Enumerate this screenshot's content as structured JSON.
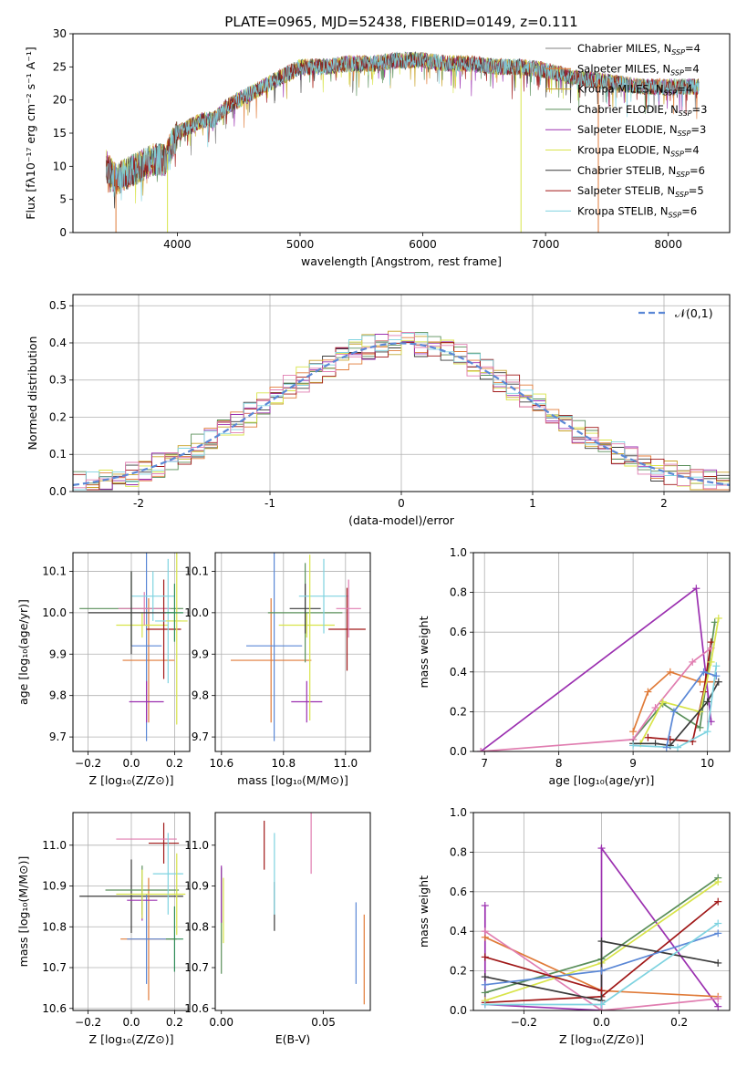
{
  "figure_title": "PLATE=0965, MJD=52438, FIBERID=0149, z=0.111",
  "colors": {
    "series": [
      "#808080",
      "#e07b39",
      "#c9a227",
      "#5a8f5a",
      "#9b30b0",
      "#d8e44a",
      "#3a3a3a",
      "#a01818",
      "#7fd3e0",
      "#5a87d6",
      "#e07db0",
      "#2e8b57"
    ],
    "norm_curve": "#5a87d6"
  },
  "chart_data": [
    {
      "id": "spectrum",
      "type": "line",
      "title": "PLATE=0965, MJD=52438, FIBERID=0149, z=0.111",
      "xlabel": "wavelength [Angstrom, rest frame]",
      "ylabel": "Flux [fλ10⁻¹⁷ erg cm⁻² s⁻¹ A⁻¹]",
      "xlim": [
        3150,
        8500
      ],
      "ylim": [
        0,
        30
      ],
      "xticks": [
        4000,
        5000,
        6000,
        7000,
        8000
      ],
      "yticks": [
        0,
        5,
        10,
        15,
        20,
        25,
        30
      ],
      "legend_position": "top-right",
      "legend": [
        "Chabrier MILES, N_SSP=4",
        "Salpeter MILES, N_SSP=4",
        "Kroupa MILES, N_SSP=4",
        "Chabrier ELODIE, N_SSP=3",
        "Salpeter ELODIE, N_SSP=3",
        "Kroupa ELODIE, N_SSP=4",
        "Chabrier STELIB, N_SSP=6",
        "Salpeter STELIB, N_SSP=5",
        "Kroupa STELIB, N_SSP=6"
      ],
      "legend_colors": [
        "#808080",
        "#e07b39",
        "#c9a227",
        "#5a8f5a",
        "#9b30b0",
        "#d8e44a",
        "#3a3a3a",
        "#a01818",
        "#7fd3e0"
      ],
      "envelope": {
        "x": [
          3420,
          3500,
          3600,
          3700,
          3800,
          3900,
          3950,
          4000,
          4100,
          4200,
          4300,
          4400,
          4500,
          4600,
          4800,
          5000,
          5200,
          5400,
          5600,
          5800,
          6000,
          6200,
          6400,
          6600,
          6800,
          7000,
          7200,
          7400,
          7600,
          7800,
          8000,
          8250
        ],
        "y": [
          10,
          8,
          9,
          10,
          11,
          11,
          13,
          15,
          16,
          17,
          17,
          19,
          20,
          21,
          23,
          25,
          25,
          25.5,
          25.5,
          26,
          26,
          25.5,
          25.5,
          25,
          25,
          24.5,
          23.5,
          23,
          22.5,
          22,
          22,
          22
        ]
      }
    },
    {
      "id": "residuals",
      "type": "histogram",
      "xlabel": "(data-model)/error",
      "ylabel": "Normed distribution",
      "xlim": [
        -2.5,
        2.5
      ],
      "ylim": [
        0,
        0.53
      ],
      "xticks": [
        -2,
        -1,
        0,
        1,
        2
      ],
      "yticks": [
        0.0,
        0.1,
        0.2,
        0.3,
        0.4,
        0.5
      ],
      "grid": true,
      "legend_position": "top-right",
      "legend": "𝒩(0,1)"
    },
    {
      "id": "age_vs_Z",
      "type": "errorbar",
      "xlabel": "Z [log₁₀(Z/Z⊙)]",
      "ylabel": "age  [log₁₀(age/yr)]",
      "xlim": [
        -0.27,
        0.27
      ],
      "ylim": [
        9.665,
        10.145
      ],
      "xticks": [
        -0.2,
        0.0,
        0.2
      ],
      "xtick_labels": [
        "−0.2",
        "0.0",
        "0.2"
      ],
      "yticks": [
        9.7,
        9.8,
        9.9,
        10.0,
        10.1
      ],
      "grid": true,
      "points": [
        {
          "x": 0.0,
          "y": 10.01,
          "xerr": 0.24,
          "yerr": 0.09,
          "c": 3
        },
        {
          "x": 0.08,
          "y": 9.885,
          "xerr": 0.12,
          "yerr": 0.15,
          "c": 1
        },
        {
          "x": 0.07,
          "y": 9.92,
          "xerr": 0.07,
          "yerr": 0.23,
          "c": 9
        },
        {
          "x": 0.07,
          "y": 9.785,
          "xerr": 0.08,
          "yerr": 0.05,
          "c": 4
        },
        {
          "x": 0.05,
          "y": 9.97,
          "xerr": 0.12,
          "yerr": 0.03,
          "c": 5
        },
        {
          "x": 0.06,
          "y": 10.01,
          "xerr": 0.12,
          "yerr": 0.04,
          "c": 10
        },
        {
          "x": 0.15,
          "y": 9.96,
          "xerr": 0.08,
          "yerr": 0.12,
          "c": 7
        },
        {
          "x": 0.17,
          "y": 9.98,
          "xerr": 0.06,
          "yerr": 0.15,
          "c": 8
        },
        {
          "x": 0.21,
          "y": 9.98,
          "xerr": 0.05,
          "yerr": 0.25,
          "c": 5
        },
        {
          "x": 0.1,
          "y": 10.04,
          "xerr": 0.1,
          "yerr": 0.06,
          "c": 8
        },
        {
          "x": 0.0,
          "y": 10.0,
          "xerr": 0.2,
          "yerr": 0.1,
          "c": 6
        },
        {
          "x": 0.2,
          "y": 10.0,
          "xerr": 0.04,
          "yerr": 0.07,
          "c": 11
        }
      ]
    },
    {
      "id": "age_vs_mass",
      "type": "errorbar",
      "xlabel": "mass [log₁₀(M/M⊙)]",
      "ylabel": "",
      "xlim": [
        10.58,
        11.08
      ],
      "ylim": [
        9.665,
        10.145
      ],
      "xticks": [
        10.6,
        10.8,
        11.0
      ],
      "xtick_labels": [
        "10.6",
        "10.8",
        "11.0"
      ],
      "yticks": [
        9.7,
        9.8,
        9.9,
        10.0,
        10.1
      ],
      "grid": true,
      "points": [
        {
          "x": 10.76,
          "y": 9.885,
          "xerr": 0.13,
          "yerr": 0.15,
          "c": 1
        },
        {
          "x": 10.77,
          "y": 9.92,
          "xerr": 0.09,
          "yerr": 0.23,
          "c": 9
        },
        {
          "x": 10.875,
          "y": 9.785,
          "xerr": 0.05,
          "yerr": 0.05,
          "c": 4
        },
        {
          "x": 10.875,
          "y": 9.97,
          "xerr": 0.09,
          "yerr": 0.03,
          "c": 5
        },
        {
          "x": 10.87,
          "y": 10.0,
          "xerr": 0.12,
          "yerr": 0.12,
          "c": 3
        },
        {
          "x": 10.87,
          "y": 10.01,
          "xerr": 0.05,
          "yerr": 0.06,
          "c": 6
        },
        {
          "x": 10.93,
          "y": 10.04,
          "xerr": 0.08,
          "yerr": 0.09,
          "c": 8
        },
        {
          "x": 11.005,
          "y": 9.96,
          "xerr": 0.06,
          "yerr": 0.1,
          "c": 7
        },
        {
          "x": 11.01,
          "y": 10.01,
          "xerr": 0.04,
          "yerr": 0.07,
          "c": 10
        },
        {
          "x": 10.885,
          "y": 9.94,
          "xerr": 0.0,
          "yerr": 0.2,
          "c": 5
        }
      ]
    },
    {
      "id": "mass_weight_vs_age",
      "type": "line",
      "xlabel": "age  [log₁₀(age/yr)]",
      "ylabel": "mass weight",
      "xlim": [
        6.85,
        10.3
      ],
      "ylim": [
        0,
        1
      ],
      "xticks": [
        7,
        8,
        9,
        10
      ],
      "yticks": [
        0.0,
        0.2,
        0.4,
        0.6,
        0.8,
        1.0
      ],
      "grid": true,
      "series": [
        {
          "x": [
            6.95,
            9.85,
            10.05
          ],
          "y": [
            0.0,
            0.82,
            0.15
          ],
          "c": 4
        },
        {
          "x": [
            9.0,
            9.2,
            9.5,
            9.9,
            10.1
          ],
          "y": [
            0.1,
            0.3,
            0.4,
            0.35,
            0.35
          ],
          "c": 1
        },
        {
          "x": [
            9.0,
            9.4,
            9.9,
            10.1
          ],
          "y": [
            0.06,
            0.24,
            0.12,
            0.65
          ],
          "c": 3
        },
        {
          "x": [
            9.2,
            9.5,
            9.8,
            9.95,
            10.05
          ],
          "y": [
            0.07,
            0.06,
            0.05,
            0.3,
            0.55
          ],
          "c": 7
        },
        {
          "x": [
            6.95,
            9.0,
            9.3,
            9.8,
            10.05
          ],
          "y": [
            0.0,
            0.06,
            0.22,
            0.45,
            0.52
          ],
          "c": 10
        },
        {
          "x": [
            9.1,
            9.4,
            9.9,
            10.05,
            10.15
          ],
          "y": [
            0.04,
            0.25,
            0.2,
            0.45,
            0.67
          ],
          "c": 5
        },
        {
          "x": [
            9.0,
            9.3,
            9.5,
            10.0,
            10.15
          ],
          "y": [
            0.04,
            0.04,
            0.03,
            0.25,
            0.35
          ],
          "c": 6
        },
        {
          "x": [
            9.0,
            9.6,
            10.0,
            10.12
          ],
          "y": [
            0.03,
            0.02,
            0.1,
            0.43
          ],
          "c": 8
        },
        {
          "x": [
            9.45,
            9.55,
            9.95,
            10.12
          ],
          "y": [
            0.02,
            0.2,
            0.4,
            0.38
          ],
          "c": 9
        }
      ]
    },
    {
      "id": "mass_vs_Z",
      "type": "errorbar",
      "xlabel": "Z [log₁₀(Z/Z⊙)]",
      "ylabel": "mass [log₁₀(M/M⊙)]",
      "xlim": [
        -0.27,
        0.27
      ],
      "ylim": [
        10.595,
        11.08
      ],
      "xticks": [
        -0.2,
        0.0,
        0.2
      ],
      "xtick_labels": [
        "−0.2",
        "0.0",
        "0.2"
      ],
      "yticks": [
        10.6,
        10.7,
        10.8,
        10.9,
        11.0
      ],
      "grid": true,
      "points": [
        {
          "x": 0.0,
          "y": 10.875,
          "xerr": 0.24,
          "yerr": 0.09,
          "c": 6
        },
        {
          "x": 0.08,
          "y": 10.77,
          "xerr": 0.13,
          "yerr": 0.15,
          "c": 1
        },
        {
          "x": 0.07,
          "y": 10.77,
          "xerr": 0.09,
          "yerr": 0.11,
          "c": 9
        },
        {
          "x": 0.05,
          "y": 10.865,
          "xerr": 0.07,
          "yerr": 0.05,
          "c": 4
        },
        {
          "x": 0.05,
          "y": 10.89,
          "xerr": 0.17,
          "yerr": 0.06,
          "c": 3
        },
        {
          "x": 0.05,
          "y": 10.88,
          "xerr": 0.12,
          "yerr": 0.06,
          "c": 5
        },
        {
          "x": 0.15,
          "y": 11.005,
          "xerr": 0.07,
          "yerr": 0.05,
          "c": 7
        },
        {
          "x": 0.07,
          "y": 11.015,
          "xerr": 0.14,
          "yerr": 0.0,
          "c": 10
        },
        {
          "x": 0.17,
          "y": 10.93,
          "xerr": 0.07,
          "yerr": 0.1,
          "c": 8
        },
        {
          "x": 0.2,
          "y": 10.77,
          "xerr": 0.04,
          "yerr": 0.08,
          "c": 11
        },
        {
          "x": 0.21,
          "y": 10.88,
          "xerr": 0.04,
          "yerr": 0.1,
          "c": 5
        }
      ]
    },
    {
      "id": "mass_vs_EBV",
      "type": "errorbar",
      "xlabel": "E(B-V)",
      "ylabel": "",
      "xlim": [
        -0.003,
        0.073
      ],
      "ylim": [
        10.595,
        11.08
      ],
      "xticks": [
        0.0,
        0.05
      ],
      "xtick_labels": [
        "0.00",
        "0.05"
      ],
      "yticks": [
        10.6,
        10.7,
        10.8,
        10.9,
        11.0
      ],
      "grid": false,
      "points": [
        {
          "x": 0.0,
          "y": 10.815,
          "xerr": 0,
          "yerr": 0.13,
          "c": 3
        },
        {
          "x": 0.0,
          "y": 10.88,
          "xerr": 0,
          "yerr": 0.07,
          "c": 4
        },
        {
          "x": 0.001,
          "y": 10.84,
          "xerr": 0,
          "yerr": 0.08,
          "c": 5
        },
        {
          "x": 0.021,
          "y": 11.0,
          "xerr": 0,
          "yerr": 0.06,
          "c": 7
        },
        {
          "x": 0.026,
          "y": 10.85,
          "xerr": 0,
          "yerr": 0.06,
          "c": 6
        },
        {
          "x": 0.026,
          "y": 10.93,
          "xerr": 0,
          "yerr": 0.1,
          "c": 8
        },
        {
          "x": 0.044,
          "y": 11.03,
          "xerr": 0,
          "yerr": 0.1,
          "c": 10
        },
        {
          "x": 0.066,
          "y": 10.76,
          "xerr": 0,
          "yerr": 0.1,
          "c": 9
        },
        {
          "x": 0.07,
          "y": 10.72,
          "xerr": 0,
          "yerr": 0.11,
          "c": 1
        }
      ]
    },
    {
      "id": "mass_weight_vs_Z",
      "type": "line",
      "xlabel": "Z [log₁₀(Z/Z⊙)]",
      "ylabel": "mass weight",
      "xlim": [
        -0.33,
        0.33
      ],
      "ylim": [
        0,
        1
      ],
      "xticks": [
        -0.2,
        0.0,
        0.2
      ],
      "xtick_labels": [
        "−0.2",
        "0.0",
        "0.2"
      ],
      "yticks": [
        0.0,
        0.2,
        0.4,
        0.6,
        0.8,
        1.0
      ],
      "grid": true,
      "series": [
        {
          "x": [
            -0.3,
            -0.3,
            0.0,
            0.0,
            0.3
          ],
          "y": [
            0.53,
            0.03,
            0.0,
            0.82,
            0.02
          ],
          "c": 4
        },
        {
          "x": [
            -0.3,
            0.0,
            0.3
          ],
          "y": [
            0.37,
            0.1,
            0.07
          ],
          "c": 1
        },
        {
          "x": [
            -0.3,
            0.0,
            0.3
          ],
          "y": [
            0.09,
            0.26,
            0.67
          ],
          "c": 3
        },
        {
          "x": [
            -0.3,
            0.0,
            0.3
          ],
          "y": [
            0.04,
            0.07,
            0.55
          ],
          "c": 7
        },
        {
          "x": [
            -0.3,
            0.0,
            0.3
          ],
          "y": [
            0.4,
            0.0,
            0.06
          ],
          "c": 10
        },
        {
          "x": [
            -0.3,
            0.0,
            0.3
          ],
          "y": [
            0.05,
            0.24,
            0.65
          ],
          "c": 5
        },
        {
          "x": [
            -0.3,
            0.0,
            0.0,
            0.3
          ],
          "y": [
            0.17,
            0.05,
            0.35,
            0.24
          ],
          "c": 6
        },
        {
          "x": [
            -0.3,
            0.0,
            0.3
          ],
          "y": [
            0.13,
            0.2,
            0.39
          ],
          "c": 9
        },
        {
          "x": [
            -0.3,
            0.0,
            0.3
          ],
          "y": [
            0.03,
            0.03,
            0.44
          ],
          "c": 8
        },
        {
          "x": [
            -0.3,
            0.0
          ],
          "y": [
            0.27,
            0.1
          ],
          "c": 7
        }
      ]
    }
  ]
}
